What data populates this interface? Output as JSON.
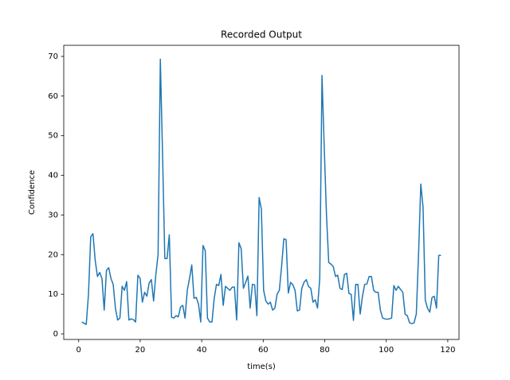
{
  "chart_data": {
    "type": "line",
    "title": "Recorded Output",
    "x_label": "time(s)",
    "y_label": "Confidence",
    "x": [
      1,
      1.73,
      2.46,
      3.19,
      3.92,
      4.65,
      5.38,
      6.11,
      6.84,
      7.57,
      8.3,
      9.03,
      9.76,
      10.49,
      11.22,
      11.95,
      12.68,
      13.41,
      14.14,
      14.87,
      15.6,
      16.33,
      17.06,
      17.79,
      18.52,
      19.25,
      19.98,
      20.71,
      21.44,
      22.17,
      22.9,
      23.63,
      24.36,
      25.09,
      25.82,
      26.55,
      27.28,
      28.01,
      28.74,
      29.47,
      30.2,
      30.93,
      31.66,
      32.39,
      33.12,
      33.85,
      34.58,
      35.31,
      36.04,
      36.77,
      37.5,
      38.23,
      38.96,
      39.69,
      40.42,
      41.15,
      41.88,
      42.61,
      43.34,
      44.07,
      44.8,
      45.53,
      46.26,
      46.99,
      47.72,
      48.45,
      49.18,
      49.91,
      50.64,
      51.37,
      52.1,
      52.83,
      53.56,
      54.29,
      55.02,
      55.75,
      56.48,
      57.21,
      57.94,
      58.67,
      59.4,
      60.13,
      60.86,
      61.59,
      62.32,
      63.05,
      63.78,
      64.51,
      65.24,
      65.97,
      66.7,
      67.43,
      68.16,
      68.89,
      69.62,
      70.35,
      71.08,
      71.81,
      72.54,
      73.27,
      74,
      74.73,
      75.46,
      76.19,
      76.92,
      77.65,
      78.38,
      79.11,
      79.84,
      80.57,
      81.3,
      82.03,
      82.76,
      83.49,
      84.22,
      84.95,
      85.68,
      86.41,
      87.14,
      87.87,
      88.6,
      89.33,
      90.06,
      90.79,
      91.52,
      92.25,
      92.98,
      93.71,
      94.44,
      95.17,
      95.9,
      96.63,
      97.36,
      98.09,
      98.82,
      99.55,
      100.28,
      101.01,
      101.74,
      102.47,
      103.2,
      103.93,
      104.66,
      105.39,
      106.12,
      106.85,
      107.58,
      108.31,
      109.04,
      109.77,
      110.5,
      111.23,
      111.96,
      112.69,
      113.42,
      114.15,
      114.88,
      115.61,
      116.34,
      117.07,
      117.8
    ],
    "series": [
      {
        "color": "#1f77b4",
        "values": [
          3,
          2.7,
          2.4,
          10,
          24.5,
          25.3,
          18.5,
          14.5,
          15.5,
          14,
          6,
          16,
          16.7,
          14,
          12.5,
          6.5,
          3.5,
          4,
          12,
          11,
          13.2,
          3.5,
          3.8,
          3.6,
          3,
          14.8,
          14,
          8,
          10.5,
          9.5,
          12.8,
          13.7,
          8.3,
          15,
          20,
          69.3,
          45,
          19,
          19,
          25,
          4.2,
          4,
          4.6,
          4.3,
          6.8,
          7.2,
          4,
          11,
          14,
          17.4,
          9,
          9.2,
          7.5,
          3,
          22.3,
          21,
          4,
          3,
          3,
          9,
          12.5,
          12.2,
          15,
          7.2,
          12,
          11.5,
          11,
          11.8,
          11.8,
          3.5,
          23,
          21.5,
          11.5,
          13,
          14.6,
          6.5,
          12.5,
          12.4,
          4.6,
          34.4,
          31.5,
          11,
          8.3,
          7.5,
          8,
          6,
          6.5,
          10,
          11,
          17,
          24,
          23.8,
          10.3,
          13,
          12.4,
          11,
          5.8,
          6,
          11.5,
          13,
          13.7,
          12,
          11.5,
          8,
          8.6,
          6.5,
          14,
          65.2,
          47,
          30,
          18,
          17.6,
          17,
          14.5,
          14.8,
          11.5,
          11.2,
          15,
          15.3,
          10.2,
          10,
          3.4,
          12.5,
          12.5,
          5,
          9.4,
          12.5,
          12.6,
          14.5,
          14.5,
          11,
          10.5,
          10.5,
          6,
          4,
          3.8,
          3.7,
          3.8,
          4,
          12.2,
          11,
          12,
          11.2,
          10.5,
          5,
          4.6,
          2.8,
          2.6,
          2.8,
          5,
          20,
          37.8,
          32,
          8.5,
          6.5,
          5.5,
          9.2,
          9.5,
          6.5,
          19.8,
          19.8
        ]
      }
    ],
    "xlim": [
      -4.85,
      123.65
    ],
    "ylim": [
      -1.4,
      72.8
    ],
    "xticks": [
      0,
      20,
      40,
      60,
      80,
      100,
      120
    ],
    "yticks": [
      0,
      10,
      20,
      30,
      40,
      50,
      60,
      70
    ]
  }
}
